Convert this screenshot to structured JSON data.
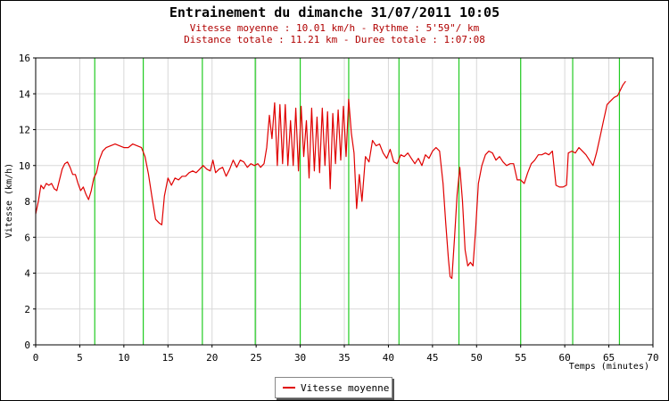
{
  "chart_data": {
    "type": "line",
    "title": "Entrainement du dimanche 31/07/2011 10:05",
    "subtitle_lines": [
      "Vitesse moyenne : 10.01 km/h - Rythme : 5'59\"/ km",
      "Distance totale : 11.21 km - Duree totale : 1:07:08"
    ],
    "xlabel": "Temps (minutes)",
    "ylabel": "Vitesse (km/h)",
    "xlim": [
      0,
      70
    ],
    "ylim": [
      0,
      16
    ],
    "x_ticks": [
      0,
      5,
      10,
      15,
      20,
      25,
      30,
      35,
      40,
      45,
      50,
      55,
      60,
      65,
      70
    ],
    "y_ticks": [
      0,
      2,
      4,
      6,
      8,
      10,
      12,
      14,
      16
    ],
    "grid": true,
    "legend_position": "bottom-center",
    "marker_lines_x": [
      6.7,
      12.2,
      18.9,
      24.9,
      30.0,
      35.5,
      41.2,
      48.0,
      55.0,
      60.9,
      66.2
    ],
    "marker_color": "#22cc22",
    "series": [
      {
        "name": "Vitesse moyenne",
        "color": "#e00000",
        "points": [
          [
            0.0,
            7.3
          ],
          [
            0.3,
            8.0
          ],
          [
            0.6,
            8.9
          ],
          [
            0.9,
            8.7
          ],
          [
            1.2,
            9.0
          ],
          [
            1.5,
            8.9
          ],
          [
            1.8,
            9.0
          ],
          [
            2.1,
            8.7
          ],
          [
            2.4,
            8.6
          ],
          [
            2.7,
            9.2
          ],
          [
            3.0,
            9.8
          ],
          [
            3.3,
            10.1
          ],
          [
            3.6,
            10.2
          ],
          [
            3.9,
            9.9
          ],
          [
            4.2,
            9.5
          ],
          [
            4.5,
            9.5
          ],
          [
            4.8,
            9.0
          ],
          [
            5.1,
            8.6
          ],
          [
            5.4,
            8.8
          ],
          [
            5.7,
            8.4
          ],
          [
            6.0,
            8.1
          ],
          [
            6.3,
            8.6
          ],
          [
            6.6,
            9.3
          ],
          [
            6.9,
            9.6
          ],
          [
            7.2,
            10.3
          ],
          [
            7.6,
            10.8
          ],
          [
            8.0,
            11.0
          ],
          [
            8.5,
            11.1
          ],
          [
            9.0,
            11.2
          ],
          [
            9.5,
            11.1
          ],
          [
            10.0,
            11.0
          ],
          [
            10.5,
            11.0
          ],
          [
            11.0,
            11.2
          ],
          [
            11.5,
            11.1
          ],
          [
            12.0,
            11.0
          ],
          [
            12.4,
            10.5
          ],
          [
            12.8,
            9.5
          ],
          [
            13.2,
            8.2
          ],
          [
            13.6,
            7.0
          ],
          [
            14.0,
            6.8
          ],
          [
            14.3,
            6.7
          ],
          [
            14.6,
            8.3
          ],
          [
            15.0,
            9.3
          ],
          [
            15.4,
            8.9
          ],
          [
            15.8,
            9.3
          ],
          [
            16.2,
            9.2
          ],
          [
            16.6,
            9.4
          ],
          [
            17.0,
            9.4
          ],
          [
            17.4,
            9.6
          ],
          [
            17.8,
            9.7
          ],
          [
            18.2,
            9.6
          ],
          [
            18.6,
            9.8
          ],
          [
            19.0,
            10.0
          ],
          [
            19.4,
            9.8
          ],
          [
            19.8,
            9.7
          ],
          [
            20.1,
            10.3
          ],
          [
            20.4,
            9.6
          ],
          [
            20.8,
            9.8
          ],
          [
            21.2,
            9.9
          ],
          [
            21.6,
            9.4
          ],
          [
            22.0,
            9.8
          ],
          [
            22.4,
            10.3
          ],
          [
            22.8,
            9.9
          ],
          [
            23.2,
            10.3
          ],
          [
            23.6,
            10.2
          ],
          [
            24.0,
            9.9
          ],
          [
            24.4,
            10.1
          ],
          [
            24.8,
            10.0
          ],
          [
            25.2,
            10.1
          ],
          [
            25.5,
            9.9
          ],
          [
            25.9,
            10.1
          ],
          [
            26.2,
            11.0
          ],
          [
            26.5,
            12.8
          ],
          [
            26.8,
            11.5
          ],
          [
            27.1,
            13.5
          ],
          [
            27.4,
            10.0
          ],
          [
            27.7,
            13.4
          ],
          [
            28.0,
            10.1
          ],
          [
            28.3,
            13.4
          ],
          [
            28.6,
            10.0
          ],
          [
            28.9,
            12.5
          ],
          [
            29.2,
            10.0
          ],
          [
            29.5,
            13.2
          ],
          [
            29.8,
            9.7
          ],
          [
            30.1,
            13.3
          ],
          [
            30.4,
            10.5
          ],
          [
            30.7,
            12.5
          ],
          [
            31.0,
            9.3
          ],
          [
            31.3,
            13.2
          ],
          [
            31.6,
            9.7
          ],
          [
            31.9,
            12.7
          ],
          [
            32.2,
            9.6
          ],
          [
            32.5,
            13.2
          ],
          [
            32.8,
            10.0
          ],
          [
            33.1,
            13.0
          ],
          [
            33.4,
            8.7
          ],
          [
            33.7,
            12.9
          ],
          [
            34.0,
            10.1
          ],
          [
            34.3,
            13.1
          ],
          [
            34.6,
            10.3
          ],
          [
            34.9,
            13.3
          ],
          [
            35.2,
            10.5
          ],
          [
            35.5,
            13.7
          ],
          [
            35.8,
            11.8
          ],
          [
            36.1,
            10.7
          ],
          [
            36.4,
            7.6
          ],
          [
            36.7,
            9.5
          ],
          [
            37.0,
            8.0
          ],
          [
            37.4,
            10.5
          ],
          [
            37.8,
            10.2
          ],
          [
            38.2,
            11.4
          ],
          [
            38.6,
            11.1
          ],
          [
            39.0,
            11.2
          ],
          [
            39.4,
            10.7
          ],
          [
            39.8,
            10.4
          ],
          [
            40.2,
            10.9
          ],
          [
            40.6,
            10.2
          ],
          [
            41.0,
            10.1
          ],
          [
            41.4,
            10.6
          ],
          [
            41.8,
            10.5
          ],
          [
            42.2,
            10.7
          ],
          [
            42.6,
            10.4
          ],
          [
            43.0,
            10.1
          ],
          [
            43.4,
            10.4
          ],
          [
            43.8,
            10.0
          ],
          [
            44.2,
            10.6
          ],
          [
            44.6,
            10.4
          ],
          [
            45.0,
            10.8
          ],
          [
            45.4,
            11.0
          ],
          [
            45.8,
            10.8
          ],
          [
            46.2,
            9.0
          ],
          [
            46.5,
            6.8
          ],
          [
            46.8,
            4.8
          ],
          [
            47.0,
            3.8
          ],
          [
            47.2,
            3.7
          ],
          [
            47.5,
            6.0
          ],
          [
            47.8,
            8.4
          ],
          [
            48.1,
            9.9
          ],
          [
            48.4,
            8.0
          ],
          [
            48.7,
            5.3
          ],
          [
            49.0,
            4.4
          ],
          [
            49.3,
            4.6
          ],
          [
            49.6,
            4.4
          ],
          [
            49.9,
            6.5
          ],
          [
            50.2,
            9.0
          ],
          [
            50.6,
            10.0
          ],
          [
            51.0,
            10.6
          ],
          [
            51.4,
            10.8
          ],
          [
            51.8,
            10.7
          ],
          [
            52.2,
            10.3
          ],
          [
            52.6,
            10.5
          ],
          [
            53.0,
            10.2
          ],
          [
            53.4,
            10.0
          ],
          [
            53.8,
            10.1
          ],
          [
            54.2,
            10.1
          ],
          [
            54.6,
            9.2
          ],
          [
            55.0,
            9.2
          ],
          [
            55.4,
            9.0
          ],
          [
            55.8,
            9.6
          ],
          [
            56.2,
            10.1
          ],
          [
            56.6,
            10.3
          ],
          [
            57.0,
            10.6
          ],
          [
            57.4,
            10.6
          ],
          [
            57.8,
            10.7
          ],
          [
            58.2,
            10.6
          ],
          [
            58.6,
            10.8
          ],
          [
            59.0,
            8.9
          ],
          [
            59.4,
            8.8
          ],
          [
            59.8,
            8.8
          ],
          [
            60.2,
            8.9
          ],
          [
            60.4,
            10.7
          ],
          [
            60.8,
            10.8
          ],
          [
            61.2,
            10.7
          ],
          [
            61.6,
            11.0
          ],
          [
            62.0,
            10.8
          ],
          [
            62.4,
            10.6
          ],
          [
            62.8,
            10.3
          ],
          [
            63.2,
            10.0
          ],
          [
            63.6,
            10.7
          ],
          [
            64.0,
            11.6
          ],
          [
            64.4,
            12.5
          ],
          [
            64.8,
            13.4
          ],
          [
            65.2,
            13.6
          ],
          [
            65.6,
            13.8
          ],
          [
            66.0,
            13.9
          ],
          [
            66.3,
            14.2
          ],
          [
            66.6,
            14.5
          ],
          [
            66.9,
            14.7
          ]
        ]
      }
    ]
  }
}
